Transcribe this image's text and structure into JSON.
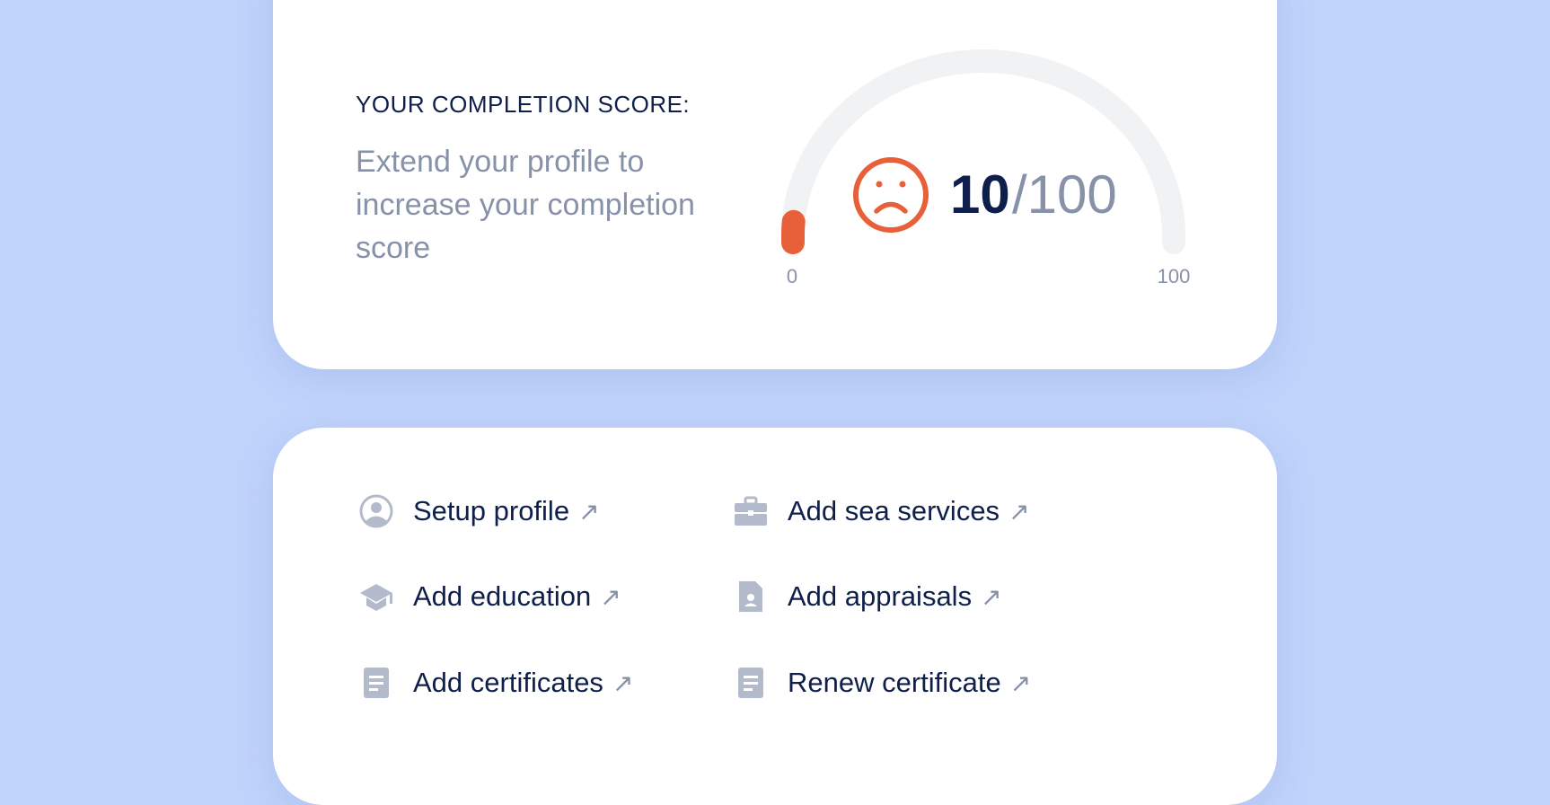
{
  "score_card": {
    "heading": "YOUR COMPLETION SCORE:",
    "subtitle": "Extend your profile to increase your completion score",
    "score": "10",
    "max": "/100",
    "score_value": 10,
    "gauge_min_label": "0",
    "gauge_max_label": "100",
    "face_icon": "sad-face-icon",
    "colors": {
      "accent": "#e8603a",
      "track": "#f1f2f4",
      "score": "#0f1f4b",
      "muted": "#8792a8"
    }
  },
  "actions": [
    {
      "label": "Setup profile",
      "icon": "user-circle-icon"
    },
    {
      "label": "Add sea services",
      "icon": "briefcase-icon"
    },
    {
      "label": "Add education",
      "icon": "graduation-cap-icon"
    },
    {
      "label": "Add appraisals",
      "icon": "id-document-icon"
    },
    {
      "label": "Add certificates",
      "icon": "document-icon"
    },
    {
      "label": "Renew certificate",
      "icon": "document-icon"
    }
  ],
  "arrow": "↗"
}
